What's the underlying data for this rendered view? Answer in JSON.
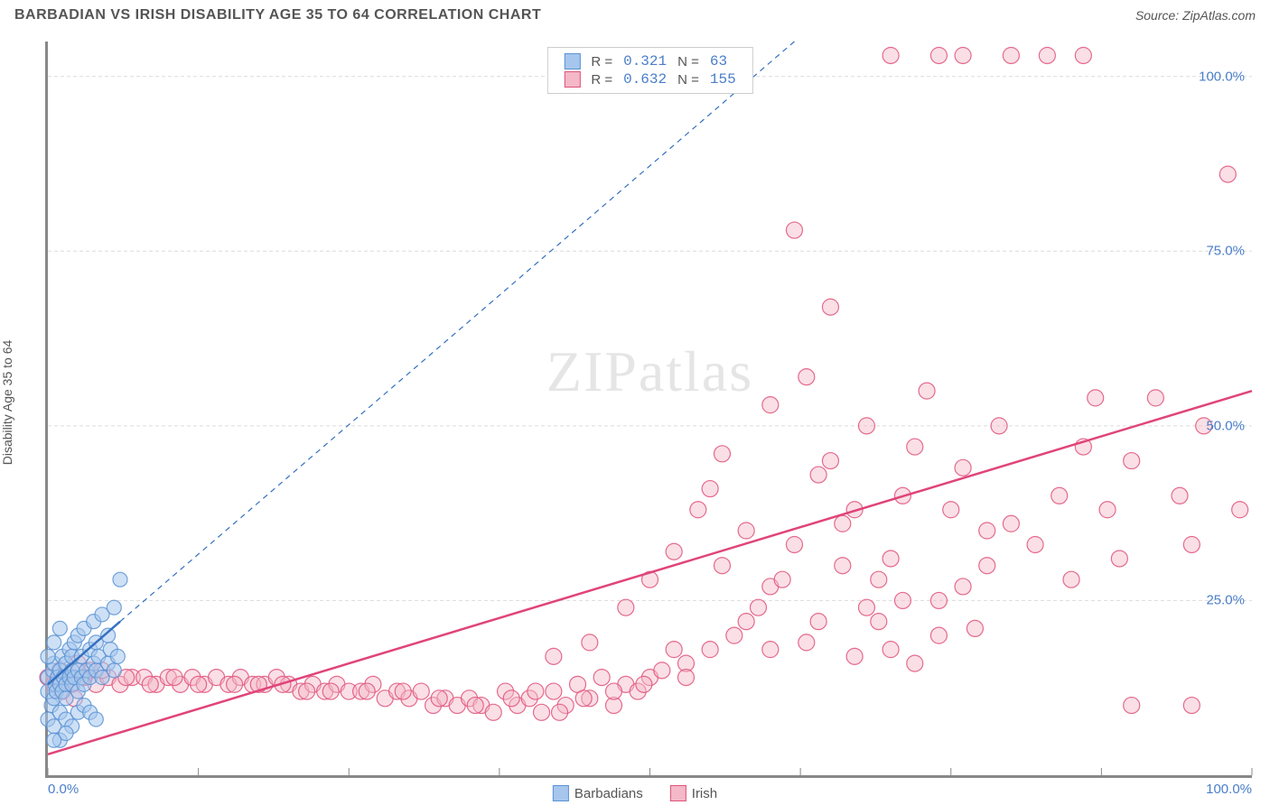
{
  "title": "BARBADIAN VS IRISH DISABILITY AGE 35 TO 64 CORRELATION CHART",
  "source": "Source: ZipAtlas.com",
  "ylabel": "Disability Age 35 to 64",
  "watermark_zip": "ZIP",
  "watermark_atlas": "atlas",
  "chart": {
    "type": "scatter",
    "xlim": [
      0,
      100
    ],
    "ylim": [
      0,
      105
    ],
    "x_tick_step": 12.5,
    "y_gridlines": [
      25,
      50,
      75,
      100
    ],
    "y_tick_labels": [
      "25.0%",
      "50.0%",
      "75.0%",
      "100.0%"
    ],
    "x_tick_labels": {
      "0": "0.0%",
      "100": "100.0%"
    },
    "background_color": "#ffffff",
    "grid_color": "#dcdcdc",
    "grid_dash": "4,3",
    "axis_color": "#888888",
    "series": [
      {
        "name": "Barbadians",
        "marker_fill": "#a6c6ed",
        "marker_stroke": "#5b93d4",
        "marker_opacity": 0.55,
        "marker_radius": 8,
        "corr_R": "0.321",
        "corr_N": "63",
        "trend_solid": {
          "x1": 0,
          "y1": 13,
          "x2": 6,
          "y2": 22
        },
        "trend_dash": {
          "x1": 6,
          "y1": 22,
          "x2": 62,
          "y2": 105
        },
        "trend_color": "#3470c0",
        "points": [
          [
            0,
            12
          ],
          [
            0,
            14
          ],
          [
            0.3,
            10
          ],
          [
            0.4,
            15
          ],
          [
            0.5,
            11
          ],
          [
            0.6,
            13
          ],
          [
            0.5,
            16
          ],
          [
            0.8,
            14
          ],
          [
            0.7,
            12
          ],
          [
            1,
            13
          ],
          [
            1,
            15
          ],
          [
            1.2,
            12
          ],
          [
            1.2,
            17
          ],
          [
            1.3,
            14
          ],
          [
            1.5,
            13
          ],
          [
            1.5,
            16
          ],
          [
            1.5,
            11
          ],
          [
            1.8,
            14
          ],
          [
            1.8,
            18
          ],
          [
            2,
            13
          ],
          [
            2,
            15
          ],
          [
            2,
            17
          ],
          [
            2.2,
            14
          ],
          [
            2.2,
            19
          ],
          [
            2.5,
            15
          ],
          [
            2.5,
            12
          ],
          [
            2.5,
            20
          ],
          [
            2.8,
            14
          ],
          [
            2.8,
            17
          ],
          [
            3,
            13
          ],
          [
            3,
            21
          ],
          [
            3.2,
            15
          ],
          [
            3.5,
            18
          ],
          [
            3.5,
            14
          ],
          [
            3.8,
            16
          ],
          [
            3.8,
            22
          ],
          [
            4,
            15
          ],
          [
            4,
            19
          ],
          [
            4.2,
            17
          ],
          [
            4.5,
            14
          ],
          [
            4.5,
            23
          ],
          [
            5,
            16
          ],
          [
            5,
            20
          ],
          [
            5.2,
            18
          ],
          [
            5.5,
            15
          ],
          [
            5.5,
            24
          ],
          [
            5.8,
            17
          ],
          [
            6,
            28
          ],
          [
            0,
            8
          ],
          [
            0.5,
            7
          ],
          [
            1,
            9
          ],
          [
            1.5,
            8
          ],
          [
            2,
            7
          ],
          [
            2.5,
            9
          ],
          [
            1,
            5
          ],
          [
            1.5,
            6
          ],
          [
            0.5,
            5
          ],
          [
            3,
            10
          ],
          [
            3.5,
            9
          ],
          [
            4,
            8
          ],
          [
            0,
            17
          ],
          [
            0.5,
            19
          ],
          [
            1,
            21
          ]
        ]
      },
      {
        "name": "Irish",
        "marker_fill": "#f4b8c8",
        "marker_stroke": "#e0527a",
        "marker_opacity": 0.45,
        "marker_radius": 9,
        "corr_R": "0.632",
        "corr_N": "155",
        "trend_solid": {
          "x1": 0,
          "y1": 3,
          "x2": 100,
          "y2": 55
        },
        "trend_color": "#e0447a",
        "points": [
          [
            0,
            14
          ],
          [
            1,
            14
          ],
          [
            2,
            13
          ],
          [
            3,
            14
          ],
          [
            4,
            13
          ],
          [
            5,
            14
          ],
          [
            6,
            13
          ],
          [
            7,
            14
          ],
          [
            8,
            14
          ],
          [
            9,
            13
          ],
          [
            10,
            14
          ],
          [
            11,
            13
          ],
          [
            12,
            14
          ],
          [
            13,
            13
          ],
          [
            14,
            14
          ],
          [
            15,
            13
          ],
          [
            16,
            14
          ],
          [
            17,
            13
          ],
          [
            18,
            13
          ],
          [
            19,
            14
          ],
          [
            20,
            13
          ],
          [
            21,
            12
          ],
          [
            22,
            13
          ],
          [
            23,
            12
          ],
          [
            24,
            13
          ],
          [
            25,
            12
          ],
          [
            26,
            12
          ],
          [
            27,
            13
          ],
          [
            28,
            11
          ],
          [
            29,
            12
          ],
          [
            30,
            11
          ],
          [
            31,
            12
          ],
          [
            32,
            10
          ],
          [
            33,
            11
          ],
          [
            34,
            10
          ],
          [
            35,
            11
          ],
          [
            36,
            10
          ],
          [
            37,
            9
          ],
          [
            38,
            12
          ],
          [
            39,
            10
          ],
          [
            40,
            11
          ],
          [
            41,
            9
          ],
          [
            42,
            12
          ],
          [
            43,
            10
          ],
          [
            44,
            13
          ],
          [
            45,
            11
          ],
          [
            46,
            14
          ],
          [
            47,
            10
          ],
          [
            48,
            13
          ],
          [
            49,
            12
          ],
          [
            50,
            14
          ],
          [
            42,
            17
          ],
          [
            45,
            19
          ],
          [
            48,
            24
          ],
          [
            50,
            28
          ],
          [
            52,
            32
          ],
          [
            54,
            38
          ],
          [
            56,
            46
          ],
          [
            58,
            22
          ],
          [
            60,
            18
          ],
          [
            52,
            18
          ],
          [
            53,
            16
          ],
          [
            55,
            41
          ],
          [
            56,
            30
          ],
          [
            58,
            35
          ],
          [
            60,
            27
          ],
          [
            62,
            33
          ],
          [
            63,
            57
          ],
          [
            64,
            22
          ],
          [
            65,
            45
          ],
          [
            66,
            30
          ],
          [
            67,
            38
          ],
          [
            68,
            50
          ],
          [
            69,
            28
          ],
          [
            60,
            53
          ],
          [
            62,
            78
          ],
          [
            64,
            43
          ],
          [
            65,
            67
          ],
          [
            66,
            36
          ],
          [
            68,
            24
          ],
          [
            70,
            31
          ],
          [
            71,
            40
          ],
          [
            72,
            47
          ],
          [
            73,
            55
          ],
          [
            74,
            25
          ],
          [
            75,
            38
          ],
          [
            76,
            44
          ],
          [
            77,
            21
          ],
          [
            78,
            35
          ],
          [
            79,
            50
          ],
          [
            70,
            18
          ],
          [
            72,
            16
          ],
          [
            74,
            20
          ],
          [
            76,
            27
          ],
          [
            78,
            30
          ],
          [
            80,
            36
          ],
          [
            82,
            33
          ],
          [
            84,
            40
          ],
          [
            85,
            28
          ],
          [
            86,
            47
          ],
          [
            87,
            54
          ],
          [
            88,
            38
          ],
          [
            89,
            31
          ],
          [
            90,
            45
          ],
          [
            92,
            54
          ],
          [
            94,
            40
          ],
          [
            95,
            33
          ],
          [
            96,
            50
          ],
          [
            98,
            86
          ],
          [
            99,
            38
          ],
          [
            70,
            103
          ],
          [
            74,
            103
          ],
          [
            76,
            103
          ],
          [
            80,
            103
          ],
          [
            83,
            103
          ],
          [
            86,
            103
          ],
          [
            90,
            10
          ],
          [
            95,
            10
          ],
          [
            1,
            15
          ],
          [
            2.5,
            16
          ],
          [
            3.5,
            15
          ],
          [
            0.5,
            13
          ],
          [
            1.2,
            12
          ],
          [
            2.2,
            11
          ],
          [
            3,
            14
          ],
          [
            4.5,
            15
          ],
          [
            6.5,
            14
          ],
          [
            8.5,
            13
          ],
          [
            10.5,
            14
          ],
          [
            12.5,
            13
          ],
          [
            15.5,
            13
          ],
          [
            17.5,
            13
          ],
          [
            19.5,
            13
          ],
          [
            21.5,
            12
          ],
          [
            23.5,
            12
          ],
          [
            26.5,
            12
          ],
          [
            29.5,
            12
          ],
          [
            32.5,
            11
          ],
          [
            35.5,
            10
          ],
          [
            38.5,
            11
          ],
          [
            40.5,
            12
          ],
          [
            42.5,
            9
          ],
          [
            44.5,
            11
          ],
          [
            47,
            12
          ],
          [
            49.5,
            13
          ],
          [
            51,
            15
          ],
          [
            53,
            14
          ],
          [
            55,
            18
          ],
          [
            57,
            20
          ],
          [
            59,
            24
          ],
          [
            61,
            28
          ],
          [
            63,
            19
          ],
          [
            67,
            17
          ],
          [
            69,
            22
          ],
          [
            71,
            25
          ]
        ]
      }
    ]
  },
  "legend_top_labels": {
    "R": "R =",
    "N": "N ="
  },
  "legend_bottom": [
    {
      "label": "Barbadians",
      "fill": "#a6c6ed",
      "stroke": "#5b93d4"
    },
    {
      "label": "Irish",
      "fill": "#f4b8c8",
      "stroke": "#e0527a"
    }
  ]
}
